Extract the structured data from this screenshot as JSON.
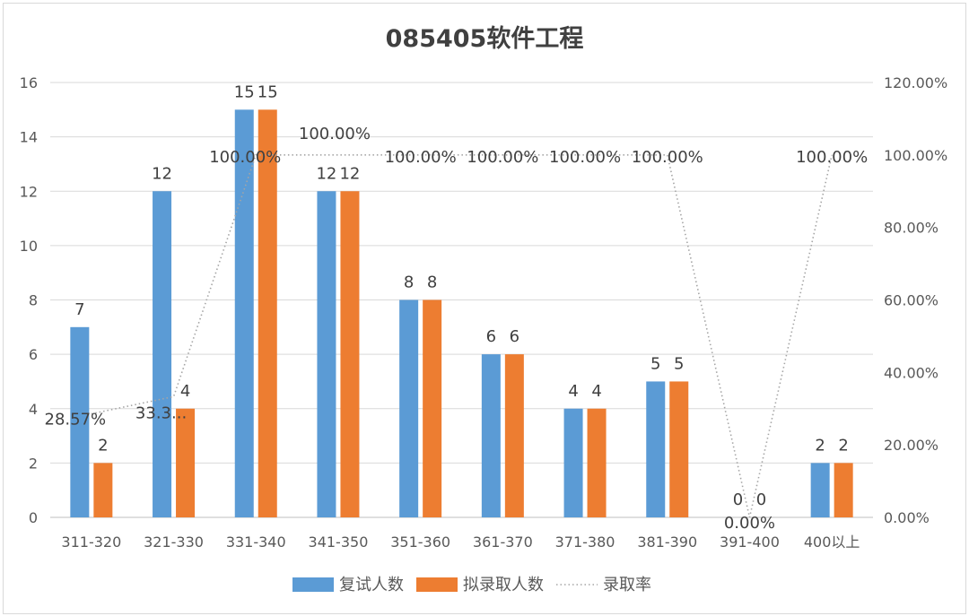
{
  "chart_data": {
    "type": "bar",
    "title": "085405软件工程",
    "categories": [
      "311-320",
      "321-330",
      "331-340",
      "341-350",
      "351-360",
      "361-370",
      "371-380",
      "381-390",
      "391-400",
      "400以上"
    ],
    "series": [
      {
        "name": "复试人数",
        "kind": "bar",
        "axis": "left",
        "color": "#5b9bd5",
        "values": [
          7,
          12,
          15,
          12,
          8,
          6,
          4,
          5,
          0,
          2
        ]
      },
      {
        "name": "拟录取人数",
        "kind": "bar",
        "axis": "left",
        "color": "#ed7d31",
        "values": [
          2,
          4,
          15,
          12,
          8,
          6,
          4,
          5,
          0,
          2
        ]
      },
      {
        "name": "录取率",
        "kind": "line",
        "axis": "right",
        "color": "#a5a5a5",
        "values": [
          28.57,
          33.33,
          100,
          100,
          100,
          100,
          100,
          100,
          0,
          100
        ]
      }
    ],
    "rate_labels": [
      "28.57%",
      "33.3...",
      "100.00%",
      "100.00%",
      "100.00%",
      "100.00%",
      "100.00%",
      "100.00%",
      "0.00%",
      "100.00%"
    ],
    "y_left": {
      "min": 0,
      "max": 16,
      "ticks": [
        "0",
        "2",
        "4",
        "6",
        "8",
        "10",
        "12",
        "14",
        "16"
      ]
    },
    "y_right": {
      "min": 0,
      "max": 120,
      "ticks": [
        "0.00%",
        "20.00%",
        "40.00%",
        "60.00%",
        "80.00%",
        "100.00%",
        "120.00%"
      ]
    },
    "grid": true,
    "legend_position": "bottom"
  }
}
